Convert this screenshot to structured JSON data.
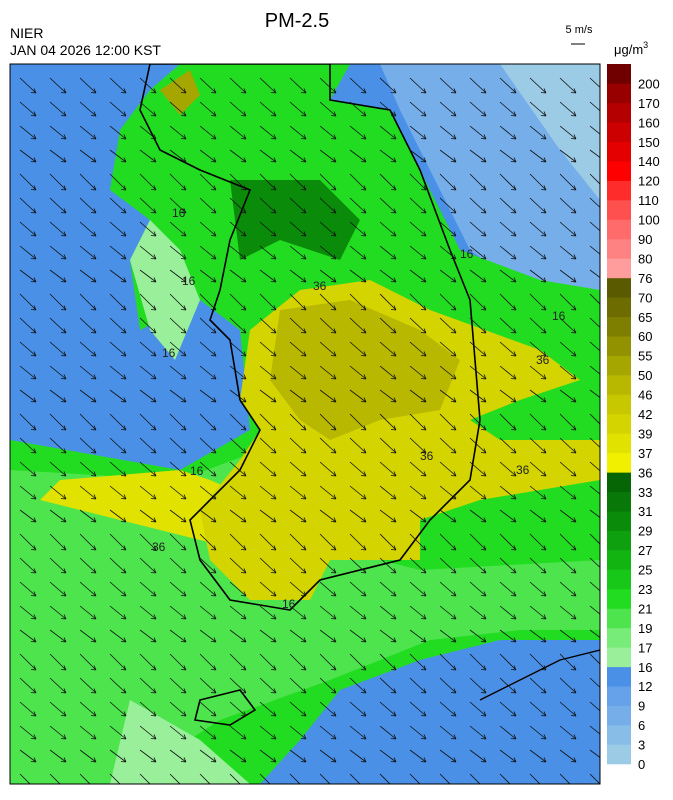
{
  "header": {
    "title": "PM-2.5",
    "agency": "NIER",
    "datetime": "JAN 04 2026 12:00 KST",
    "wind_scale": "5 m/s",
    "unit": {
      "base": "μg/m",
      "exponent": "3"
    }
  },
  "colorbar": {
    "levels": [
      0,
      3,
      6,
      9,
      12,
      16,
      17,
      19,
      21,
      23,
      25,
      27,
      29,
      31,
      33,
      36,
      37,
      39,
      42,
      46,
      50,
      55,
      60,
      65,
      70,
      76,
      80,
      90,
      100,
      110,
      120,
      140,
      150,
      160,
      170,
      200
    ],
    "colors": [
      "#9ccbe6",
      "#88bde8",
      "#76aeea",
      "#66a2ea",
      "#4a90e6",
      "#9af09a",
      "#78ec78",
      "#4ee44e",
      "#22dc22",
      "#18c818",
      "#12b412",
      "#0ea00e",
      "#0a8c0a",
      "#087808",
      "#066606",
      "#f0f000",
      "#e2e200",
      "#d4d400",
      "#c8c800",
      "#b8b800",
      "#a6a600",
      "#929200",
      "#7e7e00",
      "#6c6c00",
      "#5a5a00",
      "#ff9c9c",
      "#ff8282",
      "#ff6a6a",
      "#ff5050",
      "#ff2c2c",
      "#ff0000",
      "#e40000",
      "#cc0000",
      "#b40000",
      "#980000",
      "#700000"
    ]
  },
  "map": {
    "contour_labels": [
      "16",
      "16",
      "16",
      "16",
      "16",
      "16",
      "36",
      "36",
      "36",
      "36",
      "36",
      "16"
    ]
  }
}
